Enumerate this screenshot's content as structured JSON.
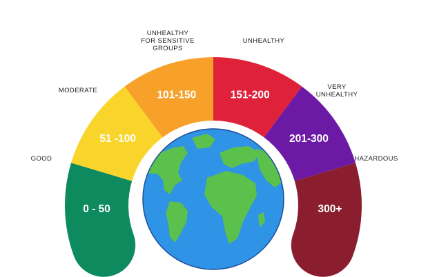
{
  "categories": [
    {
      "label": "GOOD",
      "range": "0 - 50",
      "color": "#0e8a5f"
    },
    {
      "label": "MODERATE",
      "range": "51 -100",
      "color": "#f9d52b"
    },
    {
      "label": "UNHEALTHY\nFOR SENSITIVE\nGROUPS",
      "range": "101-150",
      "color": "#f7a12a"
    },
    {
      "label": "UNHEALTHY",
      "range": "151-200",
      "color": "#e0213a"
    },
    {
      "label": "VERY\nUNHEALTHY",
      "range": "201-300",
      "color": "#6c1aa6"
    },
    {
      "label": "HAZARDOUS",
      "range": "300+",
      "color": "#8b1e2e"
    }
  ],
  "globe": {
    "ocean_color": "#2f93e6",
    "land_color": "#5cc14c",
    "outline_color": "#1c4f9c"
  }
}
